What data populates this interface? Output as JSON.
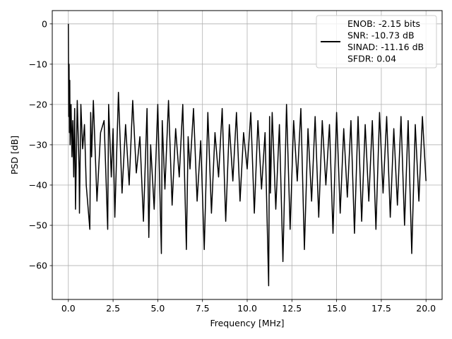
{
  "chart_data": {
    "type": "line",
    "title": "",
    "xlabel": "Frequency [MHz]",
    "ylabel": "PSD [dB]",
    "xlim": [
      -0.9,
      20.9
    ],
    "ylim": [
      -68.4,
      3.3
    ],
    "xticks": [
      0.0,
      2.5,
      5.0,
      7.5,
      10.0,
      12.5,
      15.0,
      17.5,
      20.0
    ],
    "xtick_labels": [
      "0.0",
      "2.5",
      "5.0",
      "7.5",
      "10.0",
      "12.5",
      "15.0",
      "17.5",
      "20.0"
    ],
    "yticks": [
      0,
      -10,
      -20,
      -30,
      -40,
      -50,
      -60
    ],
    "ytick_labels": [
      "0",
      "−10",
      "−20",
      "−30",
      "−40",
      "−50",
      "−60"
    ],
    "grid": true,
    "legend": {
      "placement": "top-right",
      "entries": [
        "ENOB: -2.15 bits",
        "SNR: -10.73 dB",
        "SINAD: -11.16 dB",
        "SFDR: 0.04"
      ]
    },
    "series": [
      {
        "color": "#000000",
        "x": [
          0.0,
          0.02,
          0.04,
          0.06,
          0.08,
          0.1,
          0.15,
          0.2,
          0.25,
          0.3,
          0.35,
          0.4,
          0.5,
          0.6,
          0.62,
          0.7,
          0.8,
          0.9,
          1.0,
          1.2,
          1.25,
          1.3,
          1.4,
          1.6,
          1.8,
          2.0,
          2.2,
          2.25,
          2.4,
          2.5,
          2.6,
          2.8,
          3.0,
          3.2,
          3.4,
          3.6,
          3.8,
          4.0,
          4.2,
          4.4,
          4.5,
          4.6,
          4.8,
          5.0,
          5.2,
          5.25,
          5.4,
          5.6,
          5.8,
          6.0,
          6.2,
          6.4,
          6.6,
          6.7,
          6.8,
          7.0,
          7.2,
          7.4,
          7.6,
          7.8,
          8.0,
          8.2,
          8.4,
          8.6,
          8.8,
          9.0,
          9.2,
          9.4,
          9.6,
          9.8,
          10.0,
          10.2,
          10.4,
          10.6,
          10.8,
          11.0,
          11.2,
          11.25,
          11.3,
          11.4,
          11.6,
          11.8,
          12.0,
          12.2,
          12.4,
          12.6,
          12.8,
          13.0,
          13.2,
          13.4,
          13.6,
          13.8,
          14.0,
          14.2,
          14.4,
          14.6,
          14.8,
          15.0,
          15.2,
          15.4,
          15.6,
          15.8,
          16.0,
          16.2,
          16.4,
          16.6,
          16.8,
          17.0,
          17.2,
          17.4,
          17.6,
          17.8,
          18.0,
          18.2,
          18.4,
          18.6,
          18.8,
          19.0,
          19.2,
          19.4,
          19.6,
          19.8,
          20.0
        ],
        "y": [
          0,
          -23,
          -10,
          -27,
          -14,
          -30,
          -20,
          -33,
          -24,
          -38,
          -21,
          -46,
          -19,
          -36,
          -47,
          -20,
          -31,
          -25,
          -40,
          -51,
          -22,
          -33,
          -19,
          -44,
          -27,
          -24,
          -51,
          -20,
          -38,
          -26,
          -48,
          -17,
          -42,
          -25,
          -40,
          -19,
          -37,
          -28,
          -49,
          -21,
          -53,
          -30,
          -46,
          -20,
          -57,
          -24,
          -41,
          -19,
          -45,
          -26,
          -38,
          -20,
          -56,
          -28,
          -36,
          -21,
          -44,
          -29,
          -56,
          -22,
          -47,
          -27,
          -38,
          -21,
          -49,
          -25,
          -39,
          -22,
          -44,
          -27,
          -36,
          -22,
          -47,
          -24,
          -41,
          -27,
          -65,
          -23,
          -42,
          -22,
          -46,
          -25,
          -59,
          -20,
          -51,
          -24,
          -39,
          -21,
          -56,
          -26,
          -44,
          -23,
          -48,
          -24,
          -40,
          -25,
          -52,
          -22,
          -47,
          -26,
          -43,
          -24,
          -52,
          -23,
          -49,
          -25,
          -44,
          -24,
          -51,
          -22,
          -42,
          -23,
          -48,
          -26,
          -45,
          -23,
          -50,
          -24,
          -57,
          -25,
          -44,
          -23,
          -39
        ]
      }
    ]
  }
}
